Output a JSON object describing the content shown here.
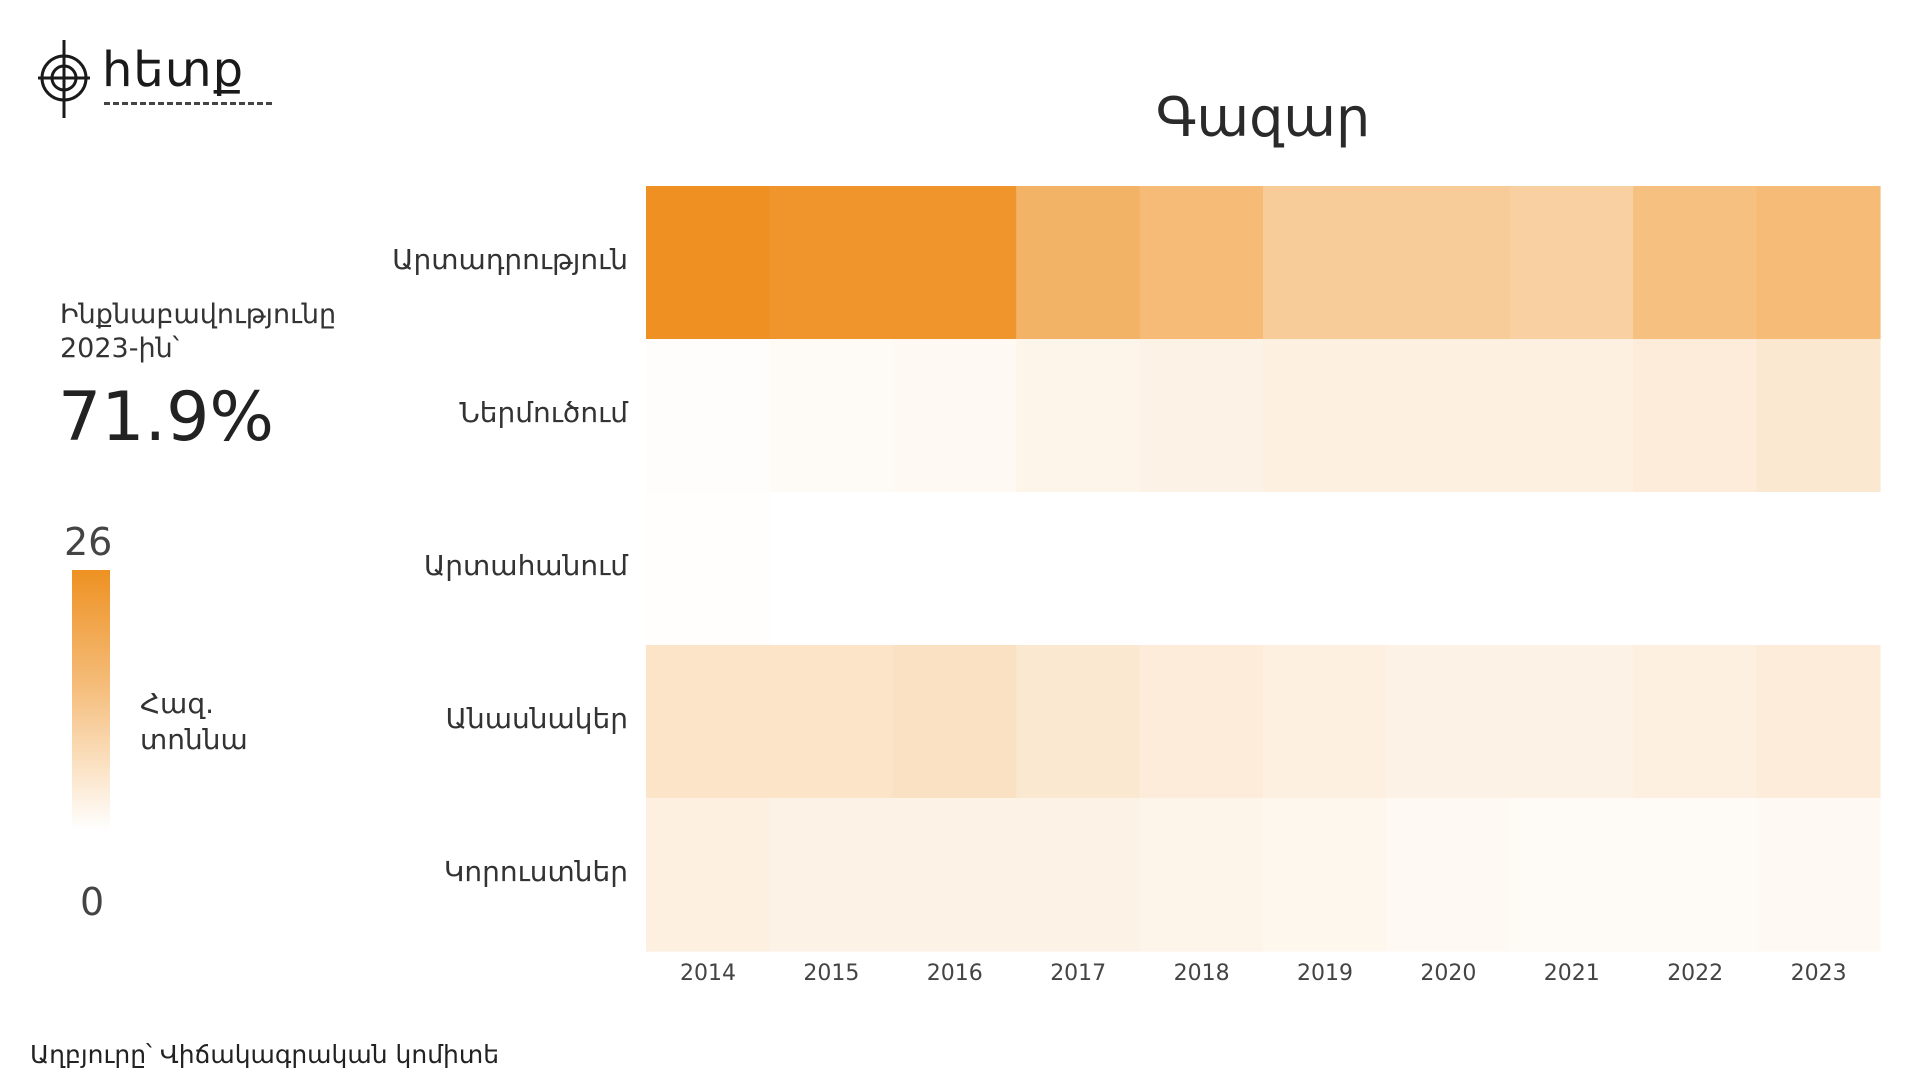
{
  "logo": {
    "text": "հետք"
  },
  "kpi": {
    "label": "Ինքնաբավությունը 2023-ին՝",
    "value": "71.9%"
  },
  "legend": {
    "max": "26",
    "min": "0",
    "unit": "Հազ.\nտոննա",
    "color_high": "#ee9122",
    "color_low": "#ffffff"
  },
  "source": "Աղբյուրը՝ Վիճակագրական կոմիտե",
  "chart_data": {
    "type": "heatmap",
    "title": "Գազար",
    "x": [
      "2014",
      "2015",
      "2016",
      "2017",
      "2018",
      "2019",
      "2020",
      "2021",
      "2022",
      "2023"
    ],
    "y": [
      "Արտադրություն",
      "Ներմուծում",
      "Արտահանում",
      "Անասնակեր",
      "Կորուստներ"
    ],
    "values": [
      [
        26.0,
        25.0,
        25.0,
        18.0,
        16.0,
        12.0,
        12.0,
        11.0,
        15.0,
        16.0
      ],
      [
        0.5,
        1.0,
        1.5,
        2.5,
        3.0,
        3.5,
        3.5,
        3.5,
        4.5,
        5.5
      ],
      [
        0.3,
        0.0,
        0.0,
        0.0,
        0.0,
        0.0,
        0.0,
        0.0,
        0.0,
        0.0
      ],
      [
        6.5,
        6.5,
        7.0,
        5.5,
        4.5,
        3.5,
        3.0,
        3.0,
        3.5,
        4.5
      ],
      [
        3.5,
        3.0,
        3.0,
        3.0,
        2.5,
        2.0,
        1.5,
        1.0,
        1.0,
        1.5
      ]
    ],
    "zlim": [
      0,
      26
    ],
    "colorbar_label": "Հազ.\nտոննա"
  }
}
